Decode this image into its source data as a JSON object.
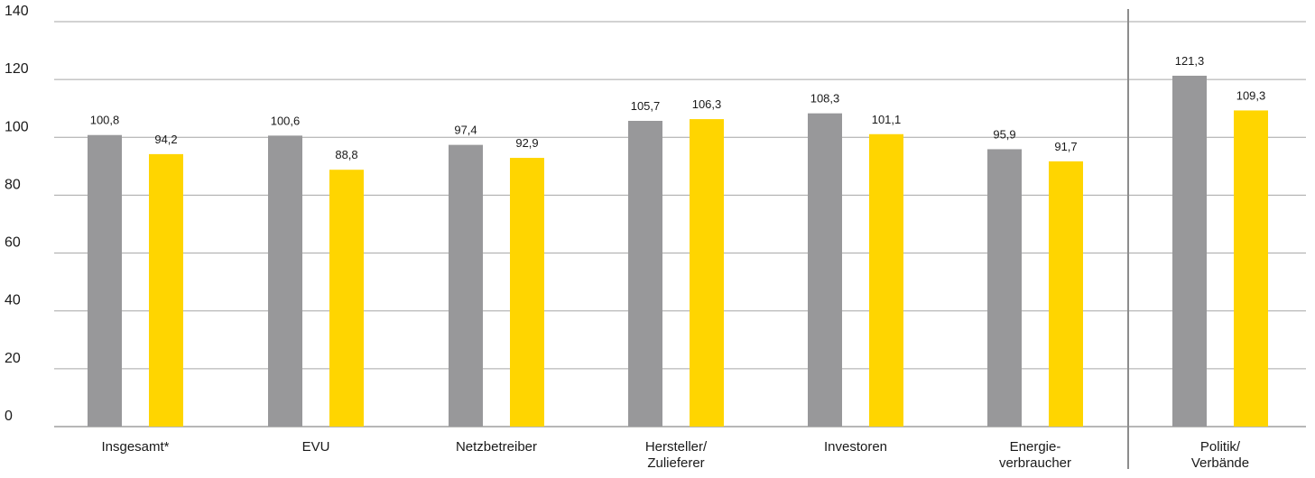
{
  "chart_data": {
    "type": "bar",
    "categories": [
      [
        "Insgesamt*"
      ],
      [
        "EVU"
      ],
      [
        "Netzbetreiber"
      ],
      [
        "Hersteller/",
        "Zulieferer"
      ],
      [
        "Investoren"
      ],
      [
        "Energie-",
        "verbraucher"
      ],
      [
        "Politik/",
        "Verbände"
      ]
    ],
    "series": [
      {
        "color": "#98989a",
        "values": [
          100.8,
          100.6,
          97.4,
          105.7,
          108.3,
          95.9,
          121.3
        ],
        "labels": [
          "100,8",
          "100,6",
          "97,4",
          "105,7",
          "108,3",
          "95,9",
          "121,3"
        ]
      },
      {
        "color": "#ffd500",
        "values": [
          94.2,
          88.8,
          92.9,
          106.3,
          101.1,
          91.7,
          109.3
        ],
        "labels": [
          "94,2",
          "88,8",
          "92,9",
          "106,3",
          "101,1",
          "91,7",
          "109,3"
        ]
      }
    ],
    "ylim": [
      0,
      140
    ],
    "yticks": [
      0,
      20,
      40,
      60,
      80,
      100,
      120,
      140
    ],
    "grid": true,
    "separator_after_category": 5,
    "title": "",
    "xlabel": "",
    "ylabel": ""
  }
}
